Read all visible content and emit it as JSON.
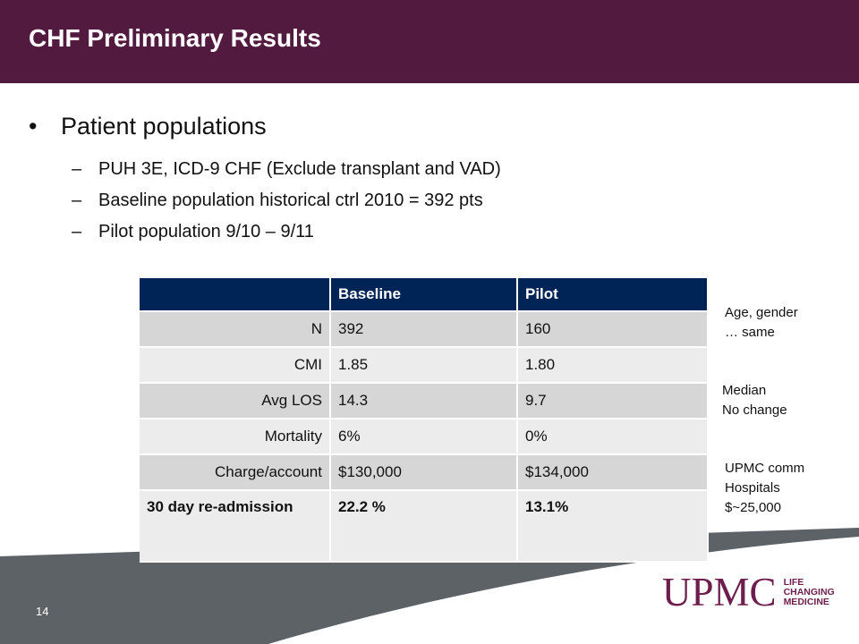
{
  "slide": {
    "title": "CHF Preliminary Results",
    "page_number": "14"
  },
  "content": {
    "bullet": "Patient populations",
    "sub_items": [
      "PUH 3E,  ICD-9 CHF (Exclude transplant and VAD)",
      "Baseline population historical ctrl 2010 = 392 pts",
      "Pilot population 9/10 – 9/11"
    ]
  },
  "table": {
    "headers": [
      "",
      "Baseline",
      "Pilot"
    ],
    "rows": [
      [
        "N",
        "392",
        "160"
      ],
      [
        "CMI",
        "1.85",
        "1.80"
      ],
      [
        "Avg LOS",
        "14.3",
        "9.7"
      ],
      [
        "Mortality",
        "6%",
        "0%"
      ],
      [
        "Charge/account",
        " $130,000",
        "$134,000"
      ],
      [
        "30 day re-admission",
        "22.2 %",
        "13.1%"
      ]
    ]
  },
  "notes": {
    "age_gender_line1": "Age, gender",
    "age_gender_line2": "… same",
    "median_line1": "Median",
    "median_line2": "No change",
    "upmc_line1": "UPMC comm",
    "upmc_line2": "Hospitals",
    "upmc_line3": "$~25,000"
  },
  "logo": {
    "wordmark": "UPMC",
    "tag_line1": "LIFE",
    "tag_line2": "CHANGING",
    "tag_line3": "MEDICINE"
  },
  "colors": {
    "header_bg": "#531a40",
    "table_header_bg": "#002456",
    "logo": "#6d1e4c",
    "bottom_band": "#5d6266"
  }
}
